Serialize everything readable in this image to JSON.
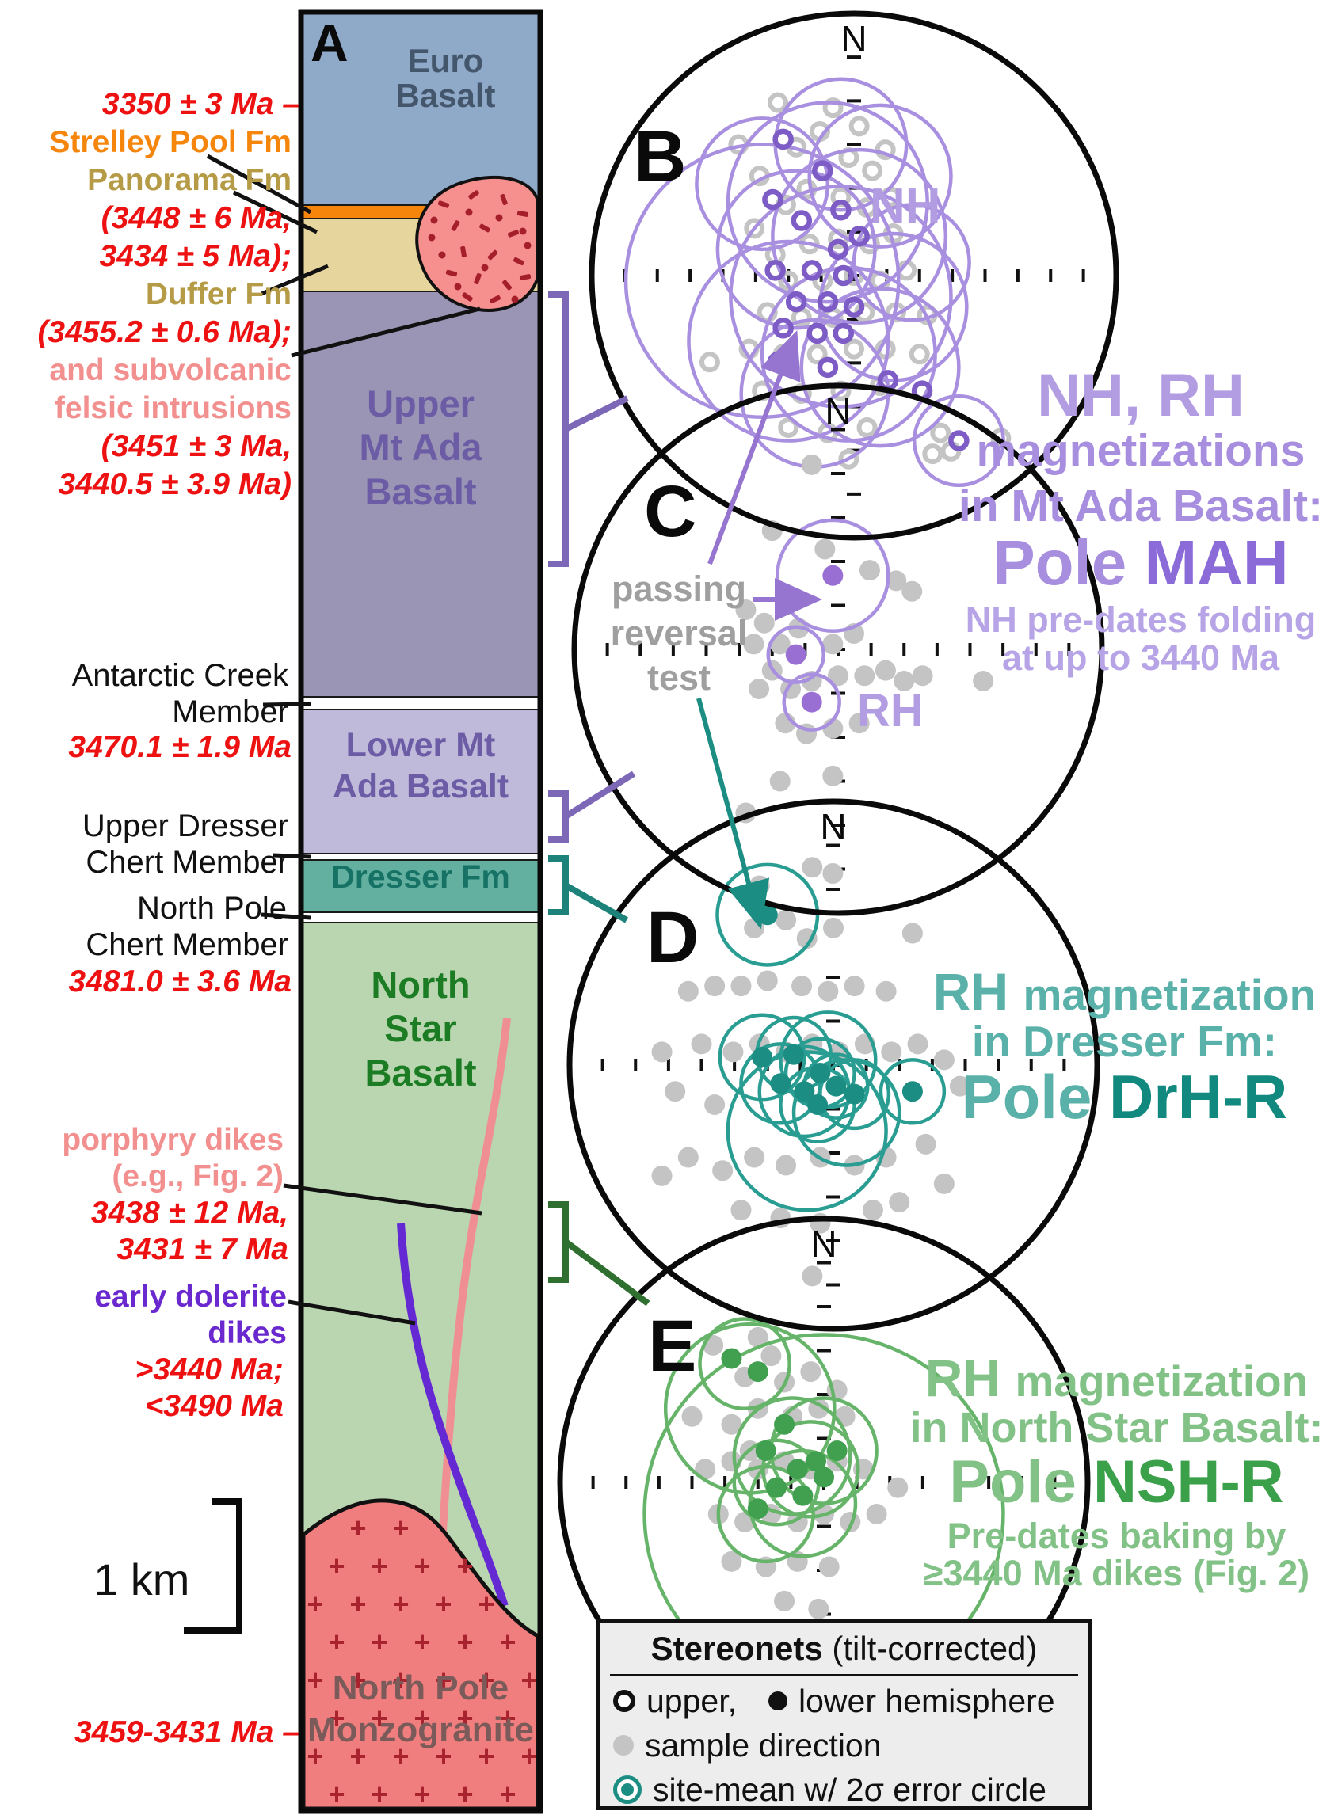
{
  "colors": {
    "red": "#ee1111",
    "orange": "#f5860b",
    "khaki": "#b59b45",
    "salmon_text": "#f2908f",
    "violet": "#6a28cf",
    "euro_fill": "#8fa9c8",
    "euro_text": "#44566b",
    "strelley_fill": "#f5860b",
    "panorama_fill": "#e7d59e",
    "upper_ada_fill": "#9a95b5",
    "ada_text": "#6b5ca5",
    "lower_ada_fill": "#bfb9da",
    "dresser_fill": "#63b0a0",
    "dresser_text": "#177266",
    "north_star_fill": "#b9d6b0",
    "north_star_text": "#1b7c24",
    "monzogranite_fill": "#f17e7e",
    "monzogranite_text": "#7b5a5a",
    "plus_mark": "#a8232e",
    "blob_fill": "#f5908f",
    "speckle": "#a51f2b",
    "pink_dike": "#ef8f94",
    "purple_dike": "#6529d3",
    "purple_ring": "#a98fe0",
    "purple_mean": "#7d5cc6",
    "purple_text_light": "#b29ce2",
    "purple_text_dark": "#8b6bd8",
    "teal_ring": "#2a9d92",
    "teal_mean": "#1b8d82",
    "teal_text_light": "#5ab1a9",
    "teal_text_dark": "#12897e",
    "green_ring": "#66b469",
    "green_mean": "#41a050",
    "green_text_light": "#82c287",
    "green_text_dark": "#3aa04a",
    "gray_sample": "#c4c4c4",
    "gray_note": "#9f9f9f",
    "bracket_purple": "#7d68b8",
    "bracket_teal": "#1d837a",
    "bracket_green": "#2f7030",
    "arrow_purple": "#9575d0",
    "arrow_teal": "#1b8d82"
  },
  "column": {
    "panel_label": "A",
    "euro": [
      "Euro",
      "Basalt"
    ],
    "upper_ada": [
      "Upper",
      "Mt Ada",
      "Basalt"
    ],
    "lower_ada": [
      "Lower Mt",
      "Ada Basalt"
    ],
    "dresser": [
      "Dresser Fm"
    ],
    "north_star": [
      "North",
      "Star",
      "Basalt"
    ],
    "monzogranite": [
      "North Pole",
      "Monzogranite"
    ],
    "scale_bar": "1 km"
  },
  "left_labels": [
    "3350 ± 3 Ma –",
    "Strelley Pool Fm",
    "Panorama Fm",
    "(3448 ± 6  Ma,",
    "3434 ± 5 Ma);",
    "Duffer Fm",
    "(3455.2 ± 0.6 Ma);",
    "and subvolcanic",
    "felsic intrusions",
    "(3451   ± 3    Ma,",
    "3440.5 ± 3.9 Ma)",
    "Antarctic Creek",
    "Member",
    "3470.1 ± 1.9 Ma",
    "Upper Dresser",
    "Chert Member",
    "North Pole",
    "Chert Member",
    "3481.0 ± 3.6 Ma",
    "porphyry dikes",
    "(e.g., Fig. 2)",
    "3438 ± 12 Ma,",
    "3431 ±   7   Ma",
    "early dolerite",
    "dikes",
    ">3440 Ma;",
    "<3490 Ma",
    "3459-3431 Ma –"
  ],
  "passing_note": [
    "passing",
    "reversal",
    "test"
  ],
  "stereonets": [
    {
      "id": "B",
      "panel_label": "B",
      "north_label": "N",
      "inner_label": "NH",
      "sample_style": "open",
      "mean_style": "open",
      "samples": [
        [
          -0.29,
          -0.66
        ],
        [
          -0.44,
          -0.5
        ],
        [
          -0.36,
          -0.38
        ],
        [
          -0.22,
          -0.49
        ],
        [
          -0.26,
          -0.27
        ],
        [
          -0.38,
          -0.18
        ],
        [
          -0.13,
          -0.55
        ],
        [
          -0.08,
          -0.64
        ],
        [
          0.02,
          -0.57
        ],
        [
          -0.02,
          -0.45
        ],
        [
          0.07,
          -0.4
        ],
        [
          0.12,
          -0.48
        ],
        [
          -0.18,
          -0.33
        ],
        [
          -0.05,
          -0.3
        ],
        [
          0.05,
          -0.26
        ],
        [
          0.14,
          -0.3
        ],
        [
          -0.3,
          -0.08
        ],
        [
          -0.17,
          -0.12
        ],
        [
          -0.06,
          -0.14
        ],
        [
          0.06,
          -0.12
        ],
        [
          0.15,
          -0.16
        ],
        [
          -0.25,
          0.02
        ],
        [
          -0.12,
          0.02
        ],
        [
          0.0,
          0.0
        ],
        [
          0.1,
          0.02
        ],
        [
          0.2,
          -0.02
        ],
        [
          -0.33,
          0.14
        ],
        [
          -0.2,
          0.16
        ],
        [
          -0.08,
          0.16
        ],
        [
          0.04,
          0.14
        ],
        [
          0.16,
          0.14
        ],
        [
          -0.4,
          0.28
        ],
        [
          -0.27,
          0.3
        ],
        [
          -0.14,
          0.3
        ],
        [
          0.0,
          0.28
        ],
        [
          0.12,
          0.28
        ],
        [
          -0.55,
          0.33
        ],
        [
          -0.35,
          0.44
        ],
        [
          -0.2,
          0.45
        ],
        [
          -0.05,
          0.44
        ],
        [
          0.1,
          0.42
        ],
        [
          -0.25,
          0.58
        ],
        [
          -0.1,
          0.6
        ],
        [
          0.05,
          0.58
        ],
        [
          0.33,
          0.6
        ],
        [
          0.37,
          0.67
        ],
        [
          0.3,
          0.68
        ],
        [
          0.56,
          0.62
        ],
        [
          -0.02,
          0.7
        ],
        [
          0.25,
          0.3
        ],
        [
          0.28,
          0.15
        ]
      ],
      "means": [
        [
          -0.27,
          -0.52
        ],
        [
          -0.12,
          -0.4
        ],
        [
          -0.31,
          -0.29
        ],
        [
          -0.2,
          -0.21
        ],
        [
          -0.05,
          -0.25
        ],
        [
          -0.06,
          -0.1
        ],
        [
          -0.3,
          -0.02
        ],
        [
          -0.16,
          -0.02
        ],
        [
          -0.04,
          0.0
        ],
        [
          0.02,
          -0.15
        ],
        [
          -0.22,
          0.1
        ],
        [
          -0.1,
          0.1
        ],
        [
          0.0,
          0.12
        ],
        [
          -0.27,
          0.2
        ],
        [
          -0.14,
          0.22
        ],
        [
          -0.04,
          0.22
        ],
        [
          -0.29,
          0.33
        ],
        [
          -0.1,
          0.35
        ],
        [
          0.13,
          0.4
        ],
        [
          0.26,
          0.44
        ],
        [
          0.4,
          0.63
        ]
      ],
      "error_circles": [
        [
          -0.35,
          0.02,
          0.52
        ],
        [
          -0.1,
          -0.28,
          0.38
        ],
        [
          -0.22,
          -0.1,
          0.3
        ],
        [
          0.02,
          -0.15,
          0.33
        ],
        [
          -0.05,
          0.08,
          0.42
        ],
        [
          -0.25,
          0.25,
          0.38
        ],
        [
          -0.02,
          0.3,
          0.33
        ],
        [
          -0.35,
          -0.35,
          0.25
        ],
        [
          0.1,
          -0.38,
          0.27
        ],
        [
          0.15,
          0.12,
          0.28
        ],
        [
          0.1,
          0.35,
          0.3
        ],
        [
          -0.15,
          0.45,
          0.28
        ],
        [
          0.4,
          0.63,
          0.17
        ],
        [
          -0.05,
          -0.5,
          0.25
        ],
        [
          0.22,
          -0.05,
          0.22
        ]
      ]
    },
    {
      "id": "C",
      "panel_label": "C",
      "north_label": "N",
      "inner_label": "RH",
      "sample_style": "filled",
      "mean_style": "filled",
      "samples": [
        [
          -0.1,
          -0.7
        ],
        [
          -0.25,
          -0.45
        ],
        [
          -0.05,
          -0.38
        ],
        [
          0.12,
          -0.3
        ],
        [
          0.22,
          -0.26
        ],
        [
          0.28,
          -0.22
        ],
        [
          -0.35,
          -0.15
        ],
        [
          -0.28,
          -0.1
        ],
        [
          -0.32,
          -0.02
        ],
        [
          -0.22,
          -0.02
        ],
        [
          -0.15,
          -0.08
        ],
        [
          -0.25,
          0.08
        ],
        [
          -0.3,
          0.15
        ],
        [
          -0.18,
          0.15
        ],
        [
          -0.1,
          0.12
        ],
        [
          0.0,
          0.1
        ],
        [
          0.1,
          0.1
        ],
        [
          0.18,
          0.08
        ],
        [
          0.25,
          0.12
        ],
        [
          0.32,
          0.1
        ],
        [
          -0.2,
          0.28
        ],
        [
          -0.12,
          0.32
        ],
        [
          -0.02,
          0.3
        ],
        [
          0.08,
          0.28
        ],
        [
          0.55,
          0.12
        ],
        [
          -0.02,
          0.48
        ],
        [
          -0.22,
          0.5
        ],
        [
          -0.35,
          0.62
        ],
        [
          -0.02,
          0.85
        ],
        [
          -0.02,
          -0.02
        ],
        [
          0.06,
          -0.06
        ]
      ],
      "means": [
        [
          -0.02,
          -0.28
        ],
        [
          -0.16,
          0.02
        ],
        [
          -0.1,
          0.2
        ]
      ],
      "error_circles": [
        [
          -0.02,
          -0.28,
          0.21
        ],
        [
          -0.16,
          0.02,
          0.105
        ],
        [
          -0.1,
          0.2,
          0.105
        ]
      ]
    },
    {
      "id": "D",
      "panel_label": "D",
      "north_label": "N",
      "inner_label": "",
      "sample_style": "filled",
      "mean_style": "filled",
      "samples": [
        [
          -0.28,
          -0.68
        ],
        [
          -0.08,
          -0.75
        ],
        [
          -0.3,
          -0.52
        ],
        [
          -0.18,
          -0.55
        ],
        [
          -0.1,
          -0.48
        ],
        [
          0.0,
          -0.52
        ],
        [
          0.3,
          -0.5
        ],
        [
          -0.45,
          -0.3
        ],
        [
          -0.55,
          -0.28
        ],
        [
          -0.35,
          -0.3
        ],
        [
          -0.25,
          -0.32
        ],
        [
          -0.12,
          -0.3
        ],
        [
          -0.02,
          -0.28
        ],
        [
          0.08,
          -0.3
        ],
        [
          0.2,
          -0.28
        ],
        [
          -0.65,
          -0.05
        ],
        [
          -0.5,
          -0.08
        ],
        [
          -0.6,
          0.1
        ],
        [
          -0.45,
          0.15
        ],
        [
          -0.38,
          -0.05
        ],
        [
          -0.28,
          -0.08
        ],
        [
          -0.18,
          -0.05
        ],
        [
          -0.08,
          -0.08
        ],
        [
          0.02,
          -0.05
        ],
        [
          0.12,
          -0.08
        ],
        [
          0.22,
          -0.05
        ],
        [
          0.32,
          -0.08
        ],
        [
          0.42,
          -0.02
        ],
        [
          0.48,
          0.08
        ],
        [
          -0.55,
          0.35
        ],
        [
          -0.42,
          0.4
        ],
        [
          -0.3,
          0.35
        ],
        [
          -0.18,
          0.38
        ],
        [
          -0.05,
          0.35
        ],
        [
          0.08,
          0.38
        ],
        [
          0.2,
          0.35
        ],
        [
          0.35,
          0.3
        ],
        [
          -0.35,
          0.55
        ],
        [
          -0.2,
          0.58
        ],
        [
          -0.05,
          0.6
        ],
        [
          0.15,
          0.55
        ],
        [
          -0.08,
          0.8
        ],
        [
          0.25,
          0.52
        ],
        [
          0.42,
          0.45
        ],
        [
          -0.65,
          0.42
        ]
      ],
      "means": [
        [
          -0.25,
          -0.57
        ],
        [
          -0.27,
          -0.03
        ],
        [
          -0.15,
          -0.04
        ],
        [
          -0.2,
          0.07
        ],
        [
          -0.11,
          0.1
        ],
        [
          -0.05,
          0.03
        ],
        [
          -0.06,
          0.15
        ],
        [
          0.01,
          0.08
        ],
        [
          0.08,
          0.11
        ],
        [
          0.3,
          0.1
        ]
      ],
      "error_circles": [
        [
          -0.25,
          -0.57,
          0.19
        ],
        [
          -0.27,
          -0.03,
          0.16
        ],
        [
          -0.15,
          -0.04,
          0.14
        ],
        [
          -0.2,
          0.07,
          0.15
        ],
        [
          -0.11,
          0.1,
          0.17
        ],
        [
          -0.05,
          0.03,
          0.13
        ],
        [
          -0.06,
          0.15,
          0.14
        ],
        [
          0.01,
          0.08,
          0.12
        ],
        [
          0.08,
          0.11,
          0.13
        ],
        [
          0.3,
          0.1,
          0.12
        ],
        [
          -0.1,
          0.25,
          0.3
        ],
        [
          -0.02,
          -0.02,
          0.18
        ],
        [
          0.05,
          0.18,
          0.2
        ]
      ]
    },
    {
      "id": "E",
      "panel_label": "E",
      "north_label": "N",
      "inner_label": "",
      "sample_style": "filled",
      "mean_style": "filled",
      "samples": [
        [
          -0.42,
          -0.52
        ],
        [
          -0.25,
          -0.55
        ],
        [
          -0.2,
          -0.48
        ],
        [
          -0.3,
          -0.4
        ],
        [
          -0.15,
          -0.38
        ],
        [
          -0.05,
          -0.42
        ],
        [
          -0.5,
          -0.25
        ],
        [
          -0.35,
          -0.22
        ],
        [
          -0.25,
          -0.28
        ],
        [
          -0.12,
          -0.25
        ],
        [
          -0.02,
          -0.28
        ],
        [
          0.08,
          -0.25
        ],
        [
          -0.45,
          -0.05
        ],
        [
          -0.35,
          -0.08
        ],
        [
          -0.25,
          -0.05
        ],
        [
          -0.15,
          -0.08
        ],
        [
          -0.05,
          -0.05
        ],
        [
          0.05,
          -0.08
        ],
        [
          0.15,
          -0.05
        ],
        [
          -0.4,
          0.12
        ],
        [
          -0.3,
          0.15
        ],
        [
          -0.2,
          0.12
        ],
        [
          -0.1,
          0.15
        ],
        [
          0.0,
          0.12
        ],
        [
          0.1,
          0.15
        ],
        [
          0.2,
          0.12
        ],
        [
          -0.35,
          0.3
        ],
        [
          -0.22,
          0.32
        ],
        [
          -0.1,
          0.3
        ],
        [
          0.02,
          0.32
        ],
        [
          -0.15,
          0.45
        ],
        [
          -0.02,
          0.48
        ],
        [
          0.28,
          0.02
        ],
        [
          -0.05,
          0.68
        ],
        [
          -0.28,
          -0.12
        ],
        [
          0.05,
          -0.35
        ]
      ],
      "means": [
        [
          -0.35,
          -0.47
        ],
        [
          -0.25,
          -0.42
        ],
        [
          -0.22,
          -0.12
        ],
        [
          -0.15,
          -0.22
        ],
        [
          -0.1,
          -0.05
        ],
        [
          -0.03,
          -0.08
        ],
        [
          0.05,
          -0.12
        ],
        [
          -0.18,
          0.02
        ],
        [
          -0.08,
          0.05
        ],
        [
          0.0,
          -0.02
        ],
        [
          -0.25,
          0.1
        ]
      ],
      "error_circles": [
        [
          -0.3,
          -0.45,
          0.17
        ],
        [
          -0.28,
          -0.28,
          0.32
        ],
        [
          -0.12,
          -0.1,
          0.22
        ],
        [
          -0.05,
          -0.05,
          0.18
        ],
        [
          0.0,
          -0.12,
          0.2
        ],
        [
          -0.18,
          0.0,
          0.16
        ],
        [
          -0.08,
          0.08,
          0.2
        ],
        [
          0.0,
          0.12,
          0.68
        ],
        [
          -0.22,
          0.12,
          0.18
        ]
      ]
    }
  ],
  "right_blocks": {
    "mah": {
      "l1": "NH, RH",
      "l2": "magnetizations",
      "l3": "in Mt Ada Basalt:",
      "pole_prefix": "Pole ",
      "pole_name": "MAH",
      "note1": "NH pre-dates folding",
      "note2": "at up to 3440 Ma"
    },
    "drh": {
      "rh": "RH ",
      "l1": "magnetization",
      "l2": "in Dresser Fm:",
      "pole_prefix": "Pole ",
      "pole_name": "DrH-R"
    },
    "nsh": {
      "rh": "RH ",
      "l1": "magnetization",
      "l2": "in North Star Basalt:",
      "pole_prefix": "Pole ",
      "pole_name": "NSH-R",
      "note1": "Pre-dates baking by",
      "note2": "≥3440 Ma dikes (Fig. 2)"
    }
  },
  "legend": {
    "title_bold": "Stereonets",
    "title_rest": " (tilt-corrected)",
    "row1_open": "upper,",
    "row1_filled": "lower hemisphere",
    "row2": "sample direction",
    "row3": "site-mean w/ 2σ error circle"
  }
}
